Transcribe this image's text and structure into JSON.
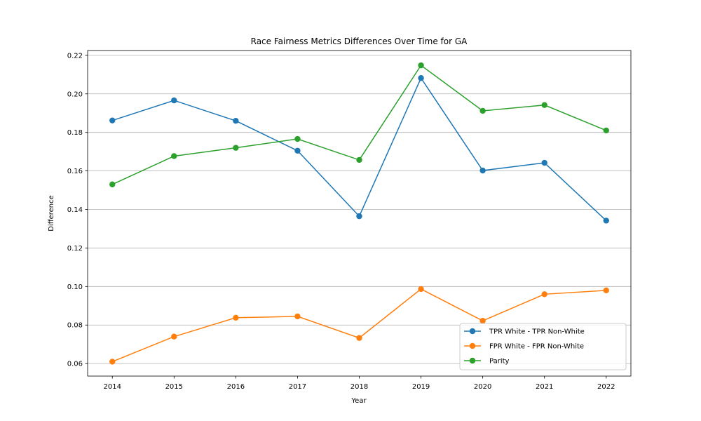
{
  "chart_data": {
    "type": "line",
    "title": "Race Fairness Metrics Differences Over Time for GA",
    "xlabel": "Year",
    "ylabel": "Difference",
    "x": [
      2014,
      2015,
      2016,
      2017,
      2018,
      2019,
      2020,
      2021,
      2022
    ],
    "xticks": [
      "2014",
      "2015",
      "2016",
      "2017",
      "2018",
      "2019",
      "2020",
      "2021",
      "2022"
    ],
    "yticks": [
      "0.06",
      "0.08",
      "0.10",
      "0.12",
      "0.14",
      "0.16",
      "0.18",
      "0.20",
      "0.22"
    ],
    "ylim": [
      0.0535,
      0.2225
    ],
    "grid": "horizontal",
    "legend_position": "lower-right",
    "series": [
      {
        "name": "TPR White - TPR Non-White",
        "color": "#1f77b4",
        "values": [
          0.1862,
          0.1966,
          0.186,
          0.1705,
          0.1365,
          0.2082,
          0.1602,
          0.1642,
          0.1342
        ]
      },
      {
        "name": "FPR White - FPR Non-White",
        "color": "#ff7f0e",
        "values": [
          0.061,
          0.074,
          0.0838,
          0.0845,
          0.0733,
          0.0987,
          0.0822,
          0.096,
          0.098
        ]
      },
      {
        "name": "Parity",
        "color": "#2ca02c",
        "values": [
          0.153,
          0.1677,
          0.172,
          0.1766,
          0.1657,
          0.2148,
          0.1912,
          0.1942,
          0.181
        ]
      }
    ]
  }
}
